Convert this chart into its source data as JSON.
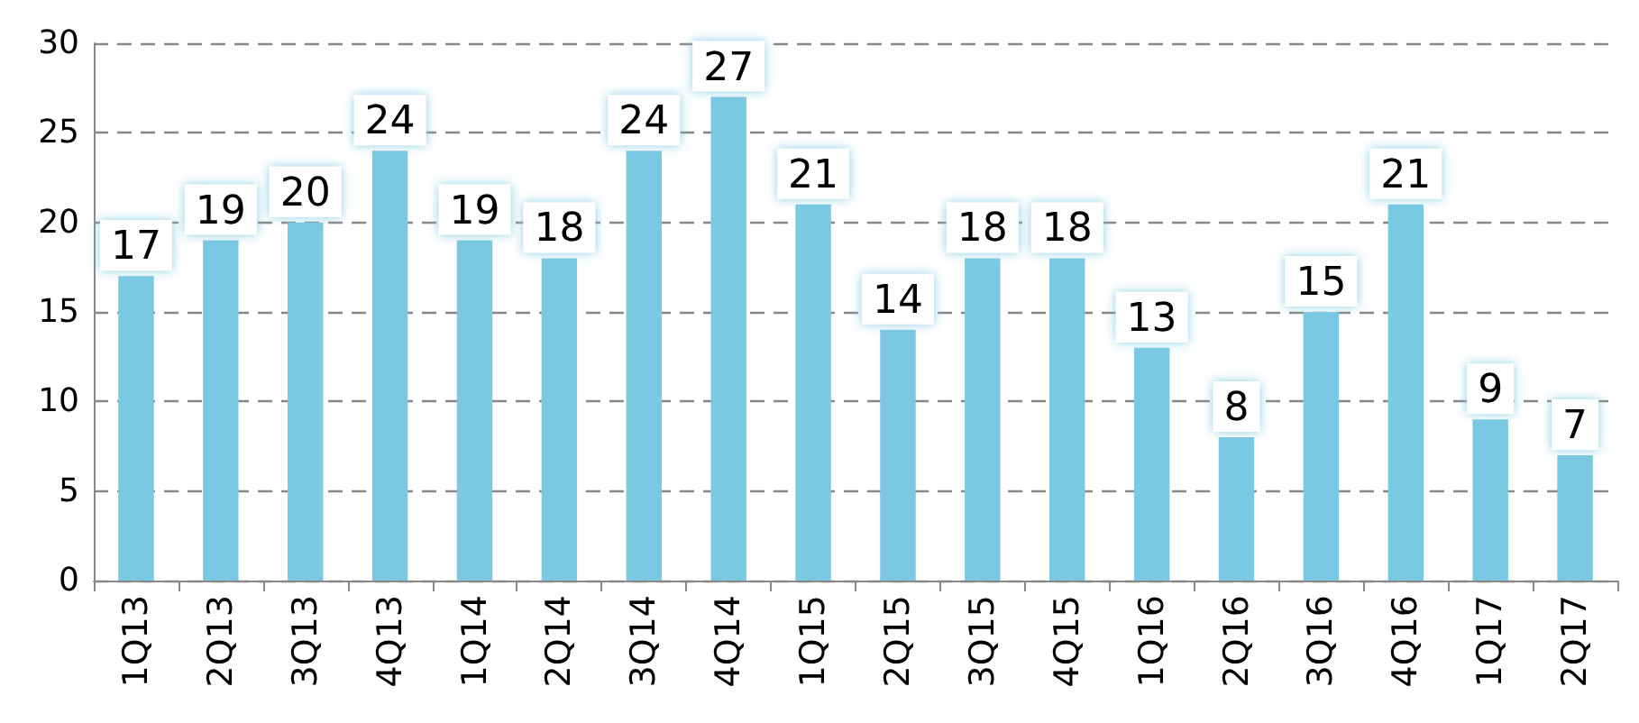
{
  "chart_data": {
    "type": "bar",
    "categories": [
      "1Q13",
      "2Q13",
      "3Q13",
      "4Q13",
      "1Q14",
      "2Q14",
      "3Q14",
      "4Q14",
      "1Q15",
      "2Q15",
      "3Q15",
      "4Q15",
      "1Q16",
      "2Q16",
      "3Q16",
      "4Q16",
      "1Q17",
      "2Q17"
    ],
    "values": [
      17,
      19,
      20,
      24,
      19,
      18,
      24,
      27,
      21,
      14,
      18,
      18,
      13,
      8,
      15,
      21,
      9,
      7
    ],
    "color": "#7ac8e2",
    "ylim": [
      0,
      30
    ],
    "yticks": [
      0,
      5,
      10,
      15,
      20,
      25,
      30
    ],
    "grid": "y",
    "data_labels": true
  }
}
